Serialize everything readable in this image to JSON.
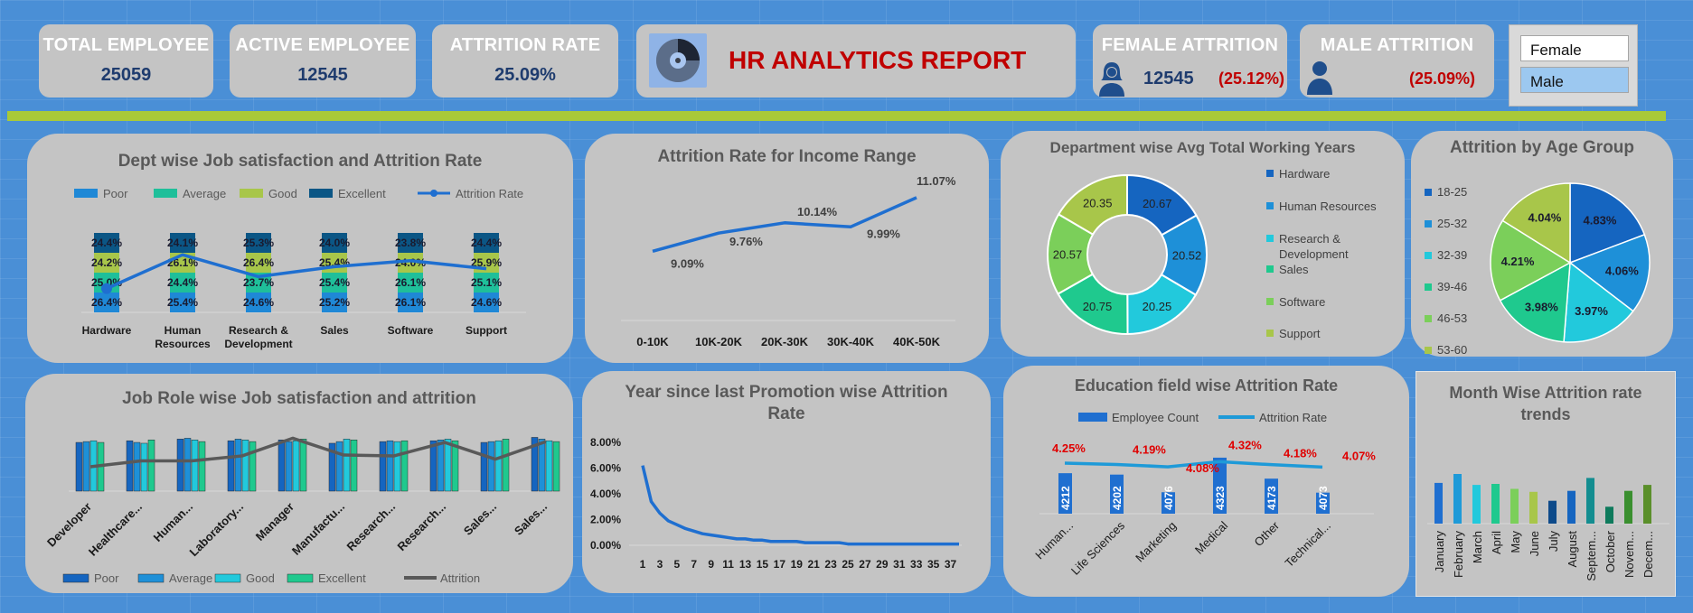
{
  "kpis": {
    "total_employee": {
      "label": "TOTAL EMPLOYEE",
      "value": "25059"
    },
    "active_employee": {
      "label": "ACTIVE EMPLOYEE",
      "value": "12545"
    },
    "attrition_rate": {
      "label": "ATTRITION RATE",
      "value": "25.09%"
    },
    "female_attrition": {
      "label": "FEMALE ATTRITION",
      "value": "12545",
      "rate": "(25.12%)"
    },
    "male_attrition": {
      "label": "MALE ATTRITION",
      "rate": "(25.09%)"
    }
  },
  "report_title": "HR ANALYTICS REPORT",
  "slicer": {
    "options": [
      "Female",
      "Male"
    ],
    "selected": "Male"
  },
  "colors": {
    "accent_bar": "#a9c938",
    "title_red": "#c00000",
    "value_blue": "#1f3c6e",
    "card_gray": "#c4c4c4",
    "background": "#4a8fd6"
  },
  "chart_data": [
    {
      "id": "dept_satisfaction",
      "type": "bar",
      "title": "Dept wise Job satisfaction and Attrition Rate",
      "categories": [
        "Hardware",
        "Human Resources",
        "Research & Development",
        "Sales",
        "Software",
        "Support"
      ],
      "category_lines": [
        [
          "Hardware"
        ],
        [
          "Human",
          "Resources"
        ],
        [
          "Research &",
          "Development"
        ],
        [
          "Sales"
        ],
        [
          "Software"
        ],
        [
          "Support"
        ]
      ],
      "stacked": true,
      "legend": [
        "Poor",
        "Average",
        "Good",
        "Excellent",
        "Attrition Rate"
      ],
      "series": [
        {
          "name": "Poor",
          "color": "#1f88d6",
          "labels": [
            "26.4%",
            "25.4%",
            "24.6%",
            "25.2%",
            "26.1%",
            "24.6%"
          ],
          "values": [
            26.4,
            25.4,
            24.6,
            25.2,
            26.1,
            24.6
          ]
        },
        {
          "name": "Average",
          "color": "#1fbf9a",
          "labels": [
            "25.0%",
            "24.4%",
            "23.7%",
            "25.4%",
            "26.1%",
            "25.1%"
          ],
          "values": [
            25.0,
            24.4,
            23.7,
            25.4,
            26.1,
            25.1
          ]
        },
        {
          "name": "Good",
          "color": "#a8c64a",
          "labels": [
            "24.2%",
            "26.1%",
            "26.4%",
            "25.4%",
            "24.0%",
            "25.9%"
          ],
          "values": [
            24.2,
            26.1,
            26.4,
            25.4,
            24.0,
            25.9
          ]
        },
        {
          "name": "Excellent",
          "color": "#0b5685",
          "labels": [
            "24.4%",
            "24.1%",
            "25.3%",
            "24.0%",
            "23.8%",
            "24.4%"
          ],
          "values": [
            24.4,
            24.1,
            25.3,
            24.0,
            23.8,
            24.4
          ]
        }
      ],
      "line": {
        "name": "Attrition Rate",
        "color": "#1f6fd0",
        "values": [
          24.2,
          25.9,
          24.8,
          25.3,
          25.6,
          25.2
        ]
      }
    },
    {
      "id": "income_range",
      "type": "line",
      "title": "Attrition Rate for Income Range",
      "categories": [
        "0-10K",
        "10K-20K",
        "20K-30K",
        "30K-40K",
        "40K-50K"
      ],
      "values": [
        9.09,
        9.76,
        10.14,
        9.99,
        11.07
      ],
      "labels": [
        "9.09%",
        "9.76%",
        "10.14%",
        "9.99%",
        "11.07%"
      ],
      "color": "#1f6fd0"
    },
    {
      "id": "dept_working_years",
      "type": "pie",
      "donut": true,
      "title": "Department wise Avg Total Working Years",
      "categories": [
        "Hardware",
        "Human Resources",
        "Research & Development",
        "Sales",
        "Software",
        "Support"
      ],
      "legend_lines": [
        [
          "Hardware"
        ],
        [
          "Human Resources"
        ],
        [
          "Research &",
          "Development"
        ],
        [
          "Sales"
        ],
        [
          "Software"
        ],
        [
          "Support"
        ]
      ],
      "values": [
        20.67,
        20.52,
        20.25,
        20.75,
        20.57,
        20.35
      ],
      "labels": [
        "20.67",
        "20.52",
        "20.25",
        "20.75",
        "20.57",
        "20.35"
      ],
      "colors": [
        "#1565c0",
        "#1e90d8",
        "#22c9dc",
        "#1fc98e",
        "#7bcf5a",
        "#a8c64a"
      ]
    },
    {
      "id": "age_group",
      "type": "pie",
      "title": "Attrition by Age Group",
      "categories": [
        "18-25",
        "25-32",
        "32-39",
        "39-46",
        "46-53",
        "53-60"
      ],
      "values": [
        4.83,
        4.06,
        3.97,
        3.98,
        4.21,
        4.04
      ],
      "labels": [
        "4.83%",
        "4.06%",
        "3.97%",
        "3.98%",
        "4.21%",
        "4.04%"
      ],
      "colors": [
        "#1565c0",
        "#1e90d8",
        "#22c9dc",
        "#1fc98e",
        "#7bcf5a",
        "#a8c64a"
      ]
    },
    {
      "id": "job_role",
      "type": "bar",
      "title": "Job Role wise Job satisfaction and attrition",
      "categories": [
        "Developer",
        "Healthcare...",
        "Human...",
        "Laboratory...",
        "Manager",
        "Manufactu...",
        "Research...",
        "Research...",
        "Sales...",
        "Sales..."
      ],
      "legend": [
        "Poor",
        "Average",
        "Good",
        "Excellent",
        "Attrition"
      ],
      "series": [
        {
          "name": "Poor",
          "color": "#1565c0",
          "values": [
            58,
            60,
            62,
            60,
            61,
            57,
            59,
            60,
            58,
            64
          ]
        },
        {
          "name": "Average",
          "color": "#1e90d8",
          "values": [
            59,
            58,
            63,
            62,
            59,
            59,
            60,
            61,
            59,
            62
          ]
        },
        {
          "name": "Good",
          "color": "#22c9dc",
          "values": [
            60,
            57,
            61,
            61,
            60,
            62,
            59,
            62,
            60,
            60
          ]
        },
        {
          "name": "Excellent",
          "color": "#1fc98e",
          "values": [
            58,
            61,
            59,
            59,
            62,
            61,
            60,
            60,
            62,
            59
          ]
        }
      ],
      "line": {
        "name": "Attrition",
        "color": "#595959",
        "values": [
          29,
          36,
          36,
          42,
          63,
          43,
          42,
          58,
          38,
          59
        ]
      }
    },
    {
      "id": "promotion_years",
      "type": "line",
      "title": "Year since last Promotion wise Attrition Rate",
      "title_lines": [
        "Year since last Promotion wise Attrition",
        "Rate"
      ],
      "x": [
        1,
        2,
        3,
        4,
        5,
        6,
        7,
        8,
        9,
        10,
        11,
        12,
        13,
        14,
        15,
        16,
        17,
        18,
        19,
        20,
        21,
        22,
        23,
        24,
        25,
        26,
        27,
        28,
        29,
        30,
        31,
        32,
        33,
        34,
        35,
        36,
        37,
        38
      ],
      "values": [
        0.062,
        0.034,
        0.025,
        0.019,
        0.016,
        0.013,
        0.011,
        0.009,
        0.008,
        0.007,
        0.006,
        0.005,
        0.005,
        0.004,
        0.004,
        0.003,
        0.003,
        0.003,
        0.003,
        0.002,
        0.002,
        0.002,
        0.002,
        0.002,
        0.001,
        0.001,
        0.001,
        0.001,
        0.001,
        0.001,
        0.001,
        0.001,
        0.001,
        0.001,
        0.001,
        0.001,
        0.001,
        0.001
      ],
      "x_tick_labels": [
        "1",
        "3",
        "5",
        "7",
        "9",
        "11",
        "13",
        "15",
        "17",
        "19",
        "21",
        "23",
        "25",
        "27",
        "29",
        "31",
        "33",
        "35",
        "37"
      ],
      "y_tick_labels": [
        "0.00%",
        "2.00%",
        "4.00%",
        "6.00%",
        "8.00%"
      ],
      "ylim": [
        0,
        0.08
      ],
      "color": "#1f6fd0"
    },
    {
      "id": "education_field",
      "type": "bar",
      "title": "Education field wise Attrition Rate",
      "categories": [
        "Human...",
        "Life Sciences",
        "Marketing",
        "Medical",
        "Other",
        "Technical..."
      ],
      "legend": [
        "Employee Count",
        "Attrition Rate"
      ],
      "counts": [
        4212,
        4202,
        4076,
        4323,
        4173,
        4073
      ],
      "count_labels": [
        "4212",
        "4202",
        "4076",
        "4323",
        "4173",
        "4073"
      ],
      "rates": [
        4.25,
        4.19,
        4.08,
        4.32,
        4.18,
        4.07
      ],
      "rate_labels": [
        "4.25%",
        "4.19%",
        "4.08%",
        "4.32%",
        "4.18%",
        "4.07%"
      ],
      "bar_color": "#1f6fd0",
      "line_color": "#1e9ad8"
    },
    {
      "id": "month_trend",
      "type": "bar",
      "title": "Month Wise Attrition rate trends",
      "title_lines": [
        "Month Wise Attrition rate",
        "trends"
      ],
      "categories": [
        "January",
        "February",
        "March",
        "April",
        "May",
        "June",
        "July",
        "August",
        "Septem...",
        "October",
        "Novem...",
        "Decem..."
      ],
      "values": [
        2.05,
        2.5,
        1.95,
        2.0,
        1.75,
        1.6,
        1.15,
        1.65,
        2.3,
        0.85,
        1.65,
        1.95
      ],
      "colors": [
        "#1f6fd0",
        "#1e9ad8",
        "#22c9dc",
        "#1fc98e",
        "#7bcf5a",
        "#a8c64a",
        "#0d4a8a",
        "#1565c0",
        "#138d90",
        "#0e7a5c",
        "#3a8f2f",
        "#5a8f2a"
      ]
    }
  ]
}
